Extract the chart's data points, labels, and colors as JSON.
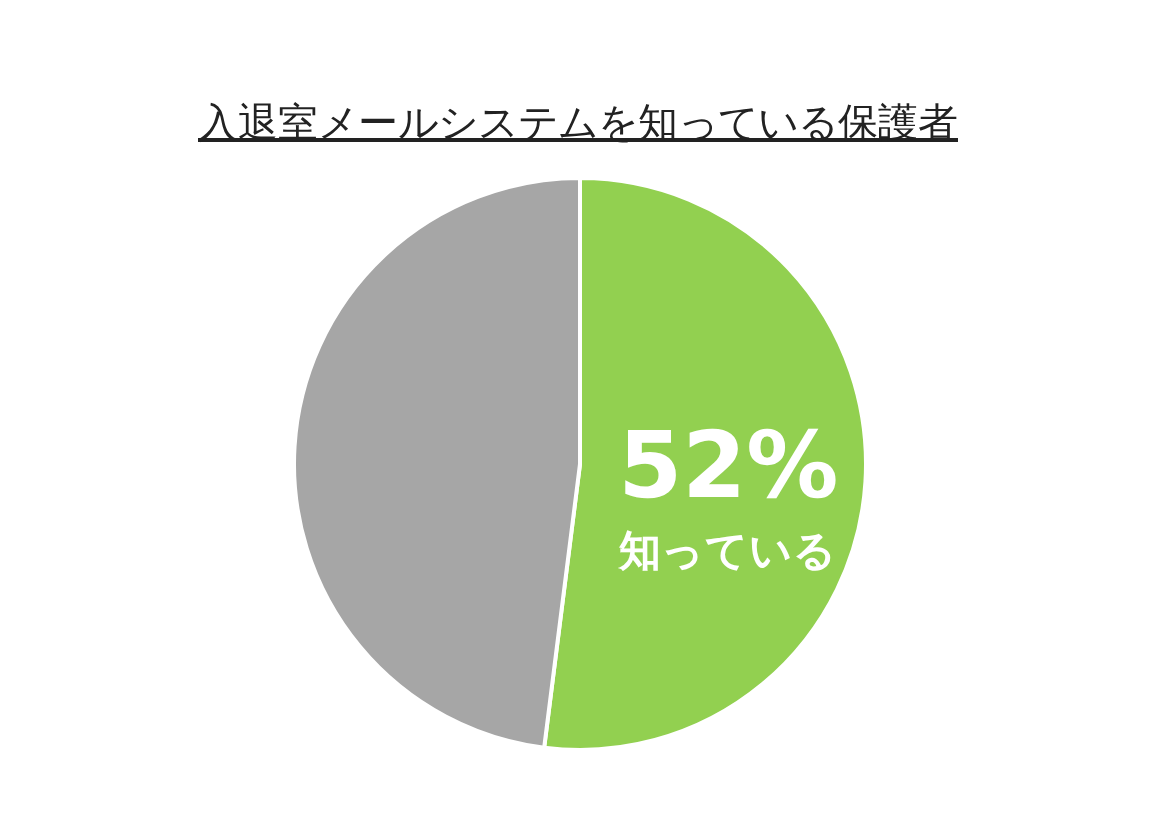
{
  "chart_data": {
    "type": "pie",
    "title": "入退室メールシステムを知っている保護者",
    "categories": [
      "知っている",
      null
    ],
    "values": [
      52,
      48
    ],
    "colors": [
      "#92d050",
      "#a6a6a6"
    ],
    "value_labels": [
      "52%",
      null
    ],
    "legend": false
  }
}
